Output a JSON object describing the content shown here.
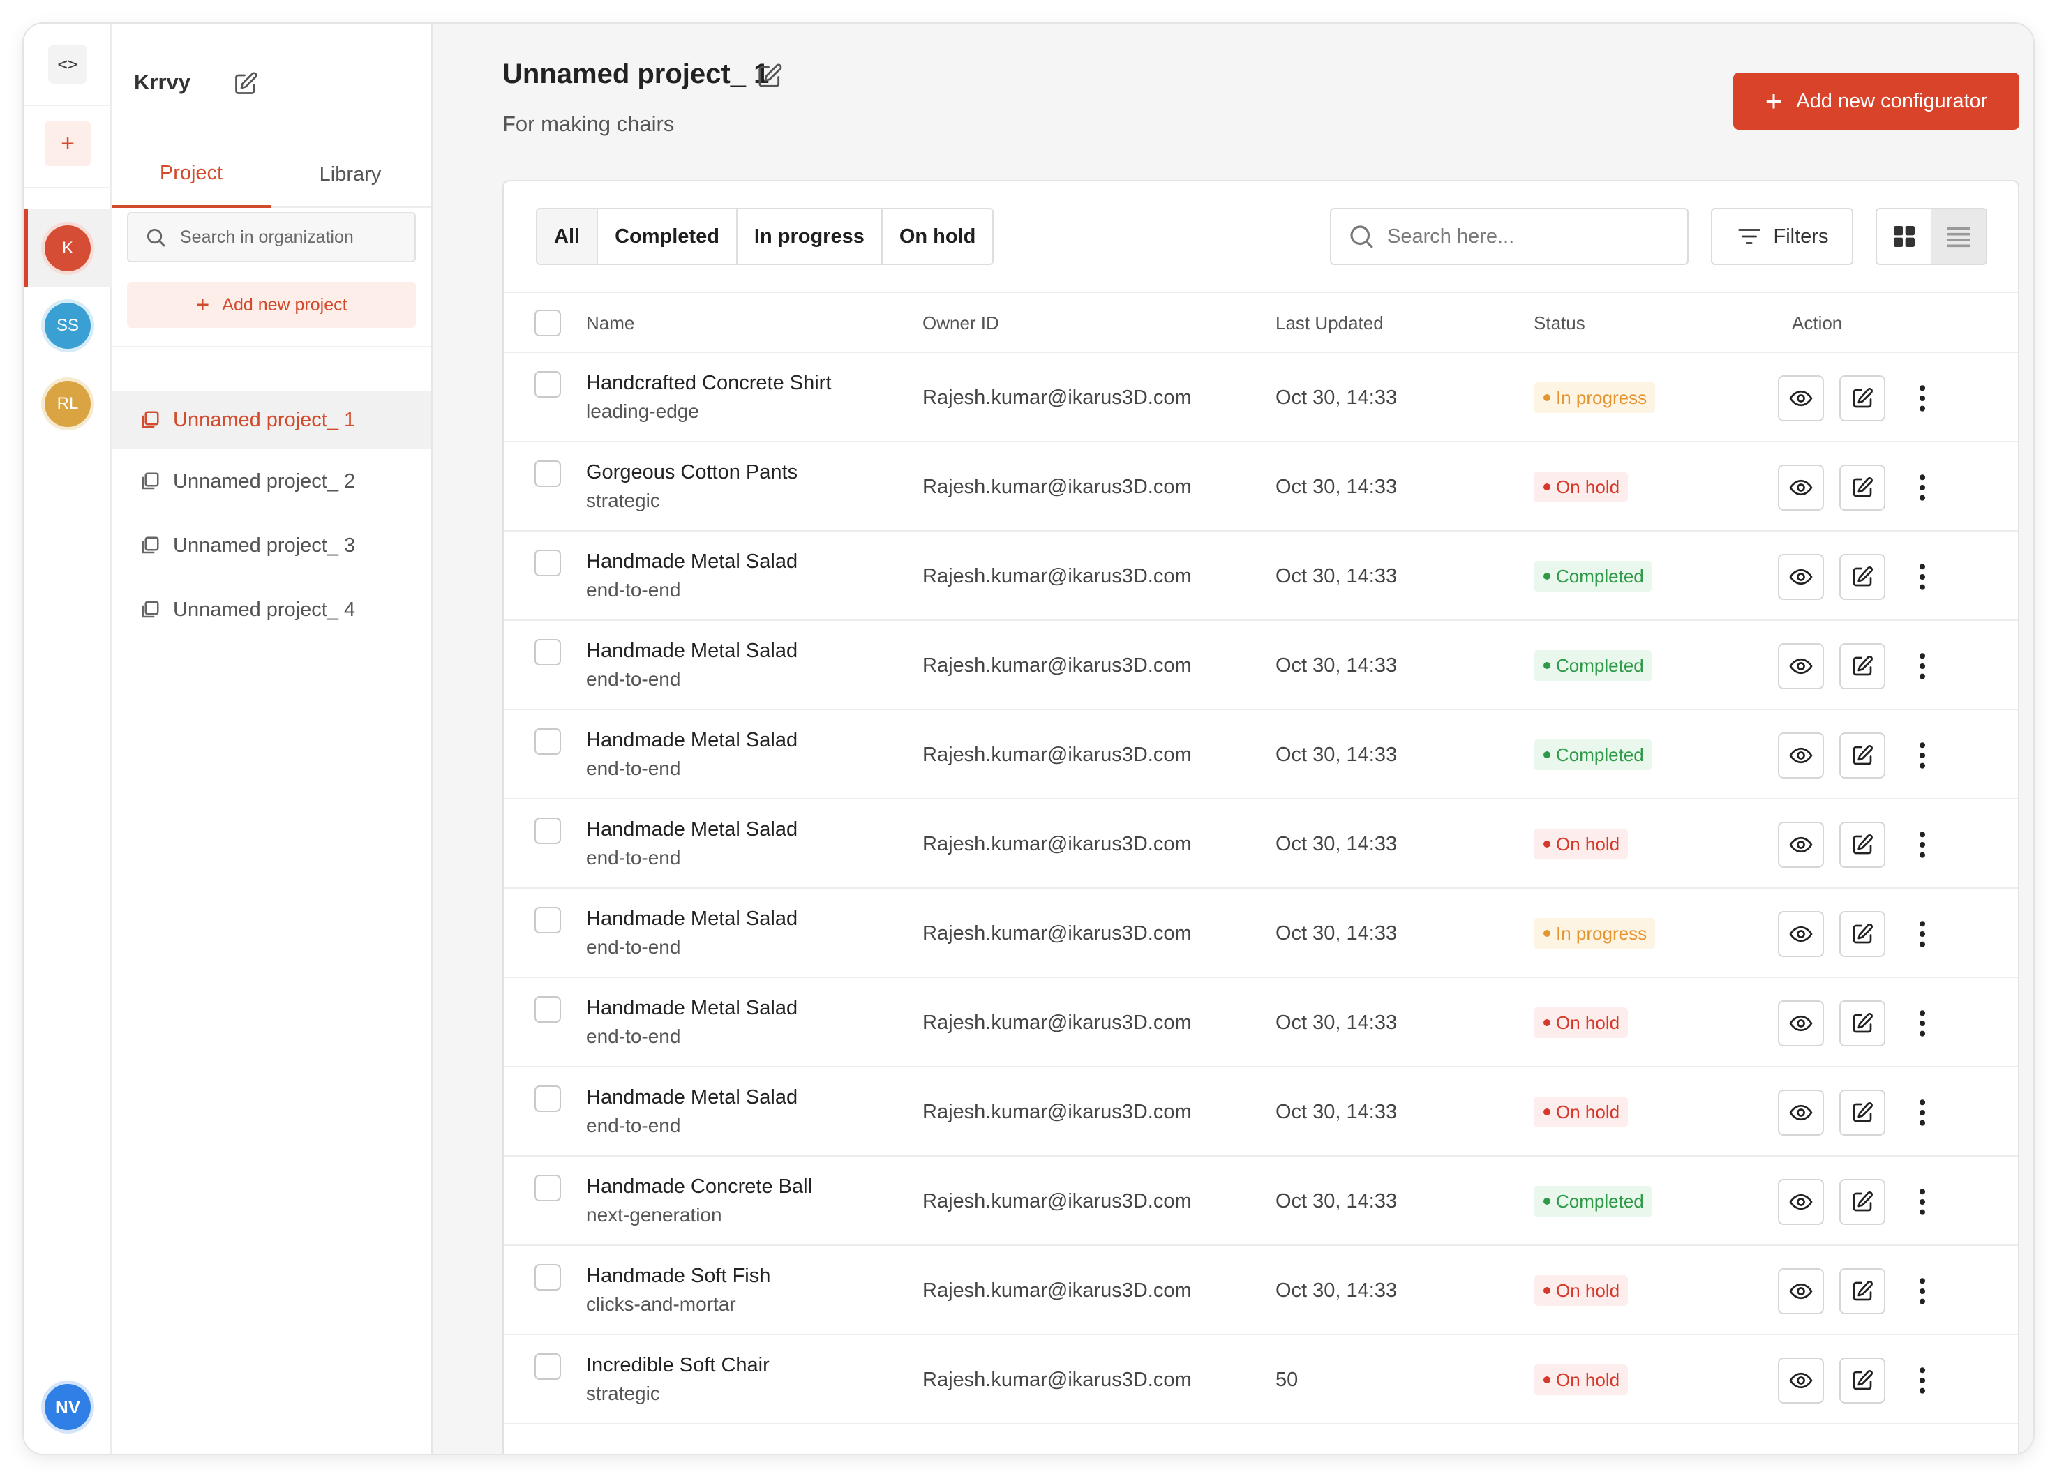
{
  "rail": {
    "code_icon": "code-icon",
    "add_icon": "plus-icon",
    "avatars": [
      {
        "initials": "K",
        "color": "#d64d35"
      },
      {
        "initials": "SS",
        "color": "#3a9fd3"
      },
      {
        "initials": "RL",
        "color": "#d9a441"
      }
    ],
    "user": {
      "initials": "NV",
      "color": "#2f7fe6"
    }
  },
  "sidebar": {
    "org_name": "Krrvy",
    "tabs": [
      {
        "label": "Project",
        "active": true
      },
      {
        "label": "Library",
        "active": false
      }
    ],
    "search_placeholder": "Search in organization",
    "add_project_label": "Add new project",
    "projects": [
      {
        "label": "Unnamed project_ 1",
        "active": true
      },
      {
        "label": "Unnamed project_ 2",
        "active": false
      },
      {
        "label": "Unnamed project_ 3",
        "active": false
      },
      {
        "label": "Unnamed project_ 4",
        "active": false
      }
    ]
  },
  "header": {
    "title": "Unnamed project_ 1",
    "subtitle": "For making chairs",
    "add_button_label": "Add new configurator"
  },
  "toolbar": {
    "status_tabs": [
      {
        "label": "All",
        "active": true
      },
      {
        "label": "Completed",
        "active": false
      },
      {
        "label": "In progress",
        "active": false
      },
      {
        "label": "On hold",
        "active": false
      }
    ],
    "search_placeholder": "Search here...",
    "filters_label": "Filters",
    "view_mode": "list"
  },
  "table": {
    "columns": {
      "name": "Name",
      "owner": "Owner ID",
      "updated": "Last Updated",
      "status": "Status",
      "action": "Action"
    },
    "rows": [
      {
        "name": "Handcrafted Concrete Shirt",
        "tag": "leading-edge",
        "owner": "Rajesh.kumar@ikarus3D.com",
        "updated": "Oct 30, 14:33",
        "status": "In progress"
      },
      {
        "name": "Gorgeous Cotton Pants",
        "tag": "strategic",
        "owner": "Rajesh.kumar@ikarus3D.com",
        "updated": "Oct 30, 14:33",
        "status": "On hold"
      },
      {
        "name": "Handmade Metal Salad",
        "tag": "end-to-end",
        "owner": "Rajesh.kumar@ikarus3D.com",
        "updated": "Oct 30, 14:33",
        "status": "Completed"
      },
      {
        "name": "Handmade Metal Salad",
        "tag": "end-to-end",
        "owner": "Rajesh.kumar@ikarus3D.com",
        "updated": "Oct 30, 14:33",
        "status": "Completed"
      },
      {
        "name": "Handmade Metal Salad",
        "tag": "end-to-end",
        "owner": "Rajesh.kumar@ikarus3D.com",
        "updated": "Oct 30, 14:33",
        "status": "Completed"
      },
      {
        "name": "Handmade Metal Salad",
        "tag": "end-to-end",
        "owner": "Rajesh.kumar@ikarus3D.com",
        "updated": "Oct 30, 14:33",
        "status": "On hold"
      },
      {
        "name": "Handmade Metal Salad",
        "tag": "end-to-end",
        "owner": "Rajesh.kumar@ikarus3D.com",
        "updated": "Oct 30, 14:33",
        "status": "In progress"
      },
      {
        "name": "Handmade Metal Salad",
        "tag": "end-to-end",
        "owner": "Rajesh.kumar@ikarus3D.com",
        "updated": "Oct 30, 14:33",
        "status": "On hold"
      },
      {
        "name": "Handmade Metal Salad",
        "tag": "end-to-end",
        "owner": "Rajesh.kumar@ikarus3D.com",
        "updated": "Oct 30, 14:33",
        "status": "On hold"
      },
      {
        "name": "Handmade Concrete Ball",
        "tag": "next-generation",
        "owner": "Rajesh.kumar@ikarus3D.com",
        "updated": "Oct 30, 14:33",
        "status": "Completed"
      },
      {
        "name": "Handmade Soft Fish",
        "tag": "clicks-and-mortar",
        "owner": "Rajesh.kumar@ikarus3D.com",
        "updated": "Oct 30, 14:33",
        "status": "On hold"
      },
      {
        "name": "Incredible Soft Chair",
        "tag": "strategic",
        "owner": "Rajesh.kumar@ikarus3D.com",
        "updated": "50",
        "status": "On hold"
      }
    ]
  },
  "colors": {
    "accent": "#d9432a",
    "in_progress": "#e59530",
    "on_hold": "#d6392a",
    "completed": "#2e9a48"
  }
}
